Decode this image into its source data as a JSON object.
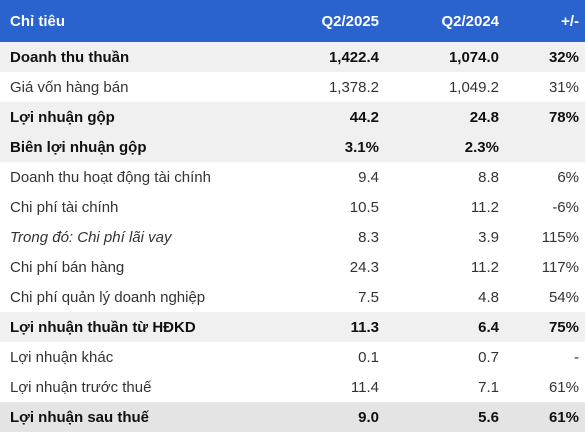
{
  "header": {
    "col_item": "Chỉ tiêu",
    "col_q2_2025": "Q2/2025",
    "col_q2_2024": "Q2/2024",
    "col_change": "+/-"
  },
  "rows": [
    {
      "label": "Doanh thu thuần",
      "q2_2025": "1,422.4",
      "q2_2024": "1,074.0",
      "change": "32%"
    },
    {
      "label": "Giá vốn hàng bán",
      "q2_2025": "1,378.2",
      "q2_2024": "1,049.2",
      "change": "31%"
    },
    {
      "label": "Lợi nhuận gộp",
      "q2_2025": "44.2",
      "q2_2024": "24.8",
      "change": "78%"
    },
    {
      "label": "Biên lợi nhuận gộp",
      "q2_2025": "3.1%",
      "q2_2024": "2.3%",
      "change": ""
    },
    {
      "label": "Doanh thu hoạt động tài chính",
      "q2_2025": "9.4",
      "q2_2024": "8.8",
      "change": "6%"
    },
    {
      "label": "Chi phí tài chính",
      "q2_2025": "10.5",
      "q2_2024": "11.2",
      "change": "-6%"
    },
    {
      "label": "Trong đó: Chi phí lãi vay",
      "q2_2025": "8.3",
      "q2_2024": "3.9",
      "change": "115%"
    },
    {
      "label": "Chi phí bán hàng",
      "q2_2025": "24.3",
      "q2_2024": "11.2",
      "change": "117%"
    },
    {
      "label": "Chi phí quản lý doanh nghiệp",
      "q2_2025": "7.5",
      "q2_2024": "4.8",
      "change": "54%"
    },
    {
      "label": "Lợi nhuận thuần từ HĐKD",
      "q2_2025": "11.3",
      "q2_2024": "6.4",
      "change": "75%"
    },
    {
      "label": "Lợi nhuận khác",
      "q2_2025": "0.1",
      "q2_2024": "0.7",
      "change": "-"
    },
    {
      "label": "Lợi nhuận trước thuế",
      "q2_2025": "11.4",
      "q2_2024": "7.1",
      "change": "61%"
    },
    {
      "label": "Lợi nhuận sau thuế",
      "q2_2025": "9.0",
      "q2_2024": "5.6",
      "change": "61%"
    }
  ],
  "colors": {
    "header_bg": "#2a62ce",
    "header_text": "#ffffff",
    "highlight_row_bg": "#f0f0f0",
    "final_row_bg": "#e4e4e4"
  }
}
